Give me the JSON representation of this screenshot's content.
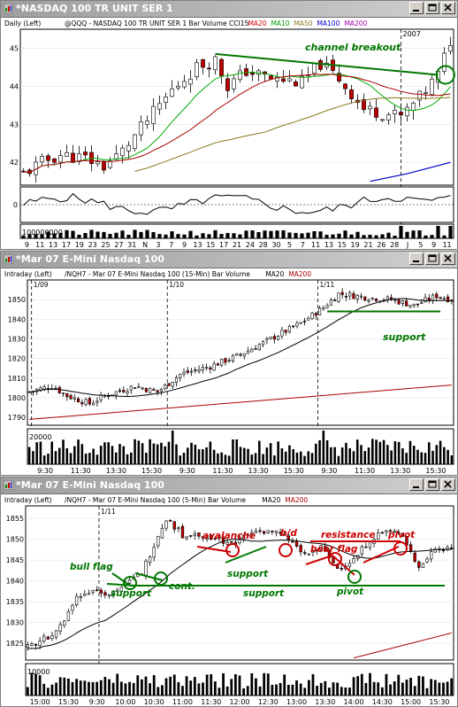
{
  "colors": {
    "up": "#ffffff",
    "down": "#c00000",
    "ma20": "#009900",
    "ma10": "#00aa00",
    "ma50": "#8a7a20",
    "ma100": "#0000cc",
    "ma200": "#aa0000",
    "annot_green": "#007700",
    "annot_red": "#cc0000",
    "grid": "#b0b0b0"
  },
  "windows": [
    {
      "title": "*NASDAQ 100 TR UNIT SER 1",
      "header_left": "Daily  (Left)",
      "header": "@QQQ - NASDAQ 100 TR UNIT SER 1  Bar  Volume  CCI15",
      "legend": [
        {
          "label": "MA20",
          "color": "#cc0000"
        },
        {
          "label": "MA10",
          "color": "#009900"
        },
        {
          "label": "MA50",
          "color": "#8a7a20"
        },
        {
          "label": "MA100",
          "color": "#0000cc"
        },
        {
          "label": "MA200",
          "color": "#aa00aa"
        }
      ],
      "year_label": "2007",
      "volume_label": "100000000",
      "cci_label": "0"
    },
    {
      "title": "*Mar 07  E-Mini Nasdaq 100",
      "header_left": "Intraday  (Left)",
      "header": "/NQH7 - Mar 07  E-Mini Nasdaq 100  (15-Min)  Bar  Volume",
      "legend": [
        {
          "label": "MA20",
          "color": "#000000"
        },
        {
          "label": "MA200",
          "color": "#aa0000"
        }
      ],
      "date_labels": [
        "1/09",
        "1/10",
        "1/11"
      ],
      "volume_label": "20000"
    },
    {
      "title": "*Mar 07  E-Mini Nasdaq 100",
      "header_left": "Intraday  (Left)",
      "header": "/NQH7 - Mar 07  E-Mini Nasdaq 100  (5-Min)  Bar  Volume",
      "legend": [
        {
          "label": "MA20",
          "color": "#000000"
        },
        {
          "label": "MA200",
          "color": "#aa0000"
        }
      ],
      "date_labels": [
        "1/11"
      ],
      "volume_label": "10000"
    }
  ],
  "chart_data": [
    {
      "type": "candlestick",
      "yticks": [
        42,
        43,
        44,
        45
      ],
      "ylim": [
        41.4,
        45.5
      ],
      "xticks": [
        "9",
        "11",
        "13",
        "17",
        "19",
        "23",
        "25",
        "27",
        "31",
        "N",
        "3",
        "7",
        "9",
        "13",
        "15",
        "17",
        "21",
        "24",
        "28",
        "30",
        "5",
        "7",
        "11",
        "13",
        "15",
        "19",
        "21",
        "26",
        "28",
        "J",
        "5",
        "9",
        "11"
      ],
      "annotations": [
        "channel breakout"
      ],
      "cci_ylim": [
        -300,
        300
      ]
    },
    {
      "type": "candlestick",
      "yticks": [
        1790,
        1800,
        1810,
        1820,
        1830,
        1840,
        1850
      ],
      "ylim": [
        1786,
        1860
      ],
      "xticks": [
        "9:30",
        "11:30",
        "13:30",
        "15:30",
        "9:30",
        "11:30",
        "13:30",
        "15:30",
        "9:30",
        "11:30",
        "13:30",
        "15:30"
      ],
      "annotations": [
        "support"
      ]
    },
    {
      "type": "candlestick",
      "yticks": [
        1825,
        1830,
        1835,
        1840,
        1845,
        1850,
        1855
      ],
      "ylim": [
        1821,
        1858
      ],
      "xticks": [
        "15:00",
        "15:30",
        "9:30",
        "10:00",
        "10:30",
        "11:00",
        "11:30",
        "12:00",
        "12:30",
        "13:00",
        "13:30",
        "14:00",
        "14:30",
        "15:00",
        "15:30"
      ],
      "annotations": [
        "bull flag",
        "support",
        "cont.",
        "avalanche",
        "support",
        "b/d",
        "resistance",
        "bear flag",
        "pivot",
        "support",
        "pivot"
      ]
    }
  ]
}
